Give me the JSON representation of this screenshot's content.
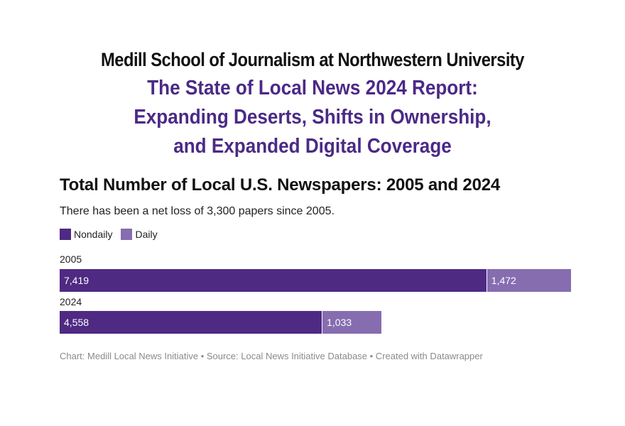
{
  "header": {
    "organization": "Medill School of Journalism at Northwestern University",
    "report_lines": [
      "The State of Local News 2024 Report:",
      "Expanding Deserts, Shifts in Ownership,",
      "and Expanded Digital Coverage"
    ]
  },
  "colors": {
    "nondaily": "#4f2a83",
    "daily": "#856daf",
    "report_title": "#4b2a86"
  },
  "chart_data": {
    "type": "bar",
    "orientation": "horizontal",
    "stacked": true,
    "title": "Total Number of Local U.S. Newspapers: 2005 and 2024",
    "subtitle": "There has been a net loss of 3,300 papers since 2005.",
    "categories": [
      "2005",
      "2024"
    ],
    "series": [
      {
        "name": "Nondaily",
        "values": [
          7419,
          4558
        ],
        "labels": [
          "7,419",
          "4,558"
        ]
      },
      {
        "name": "Daily",
        "values": [
          1472,
          1033
        ],
        "labels": [
          "1,472",
          "1,033"
        ]
      }
    ],
    "legend_position": "top-left",
    "grid": false
  },
  "footer": "Chart: Medill Local News Initiative • Source: Local News Initiative Database • Created with Datawrapper"
}
